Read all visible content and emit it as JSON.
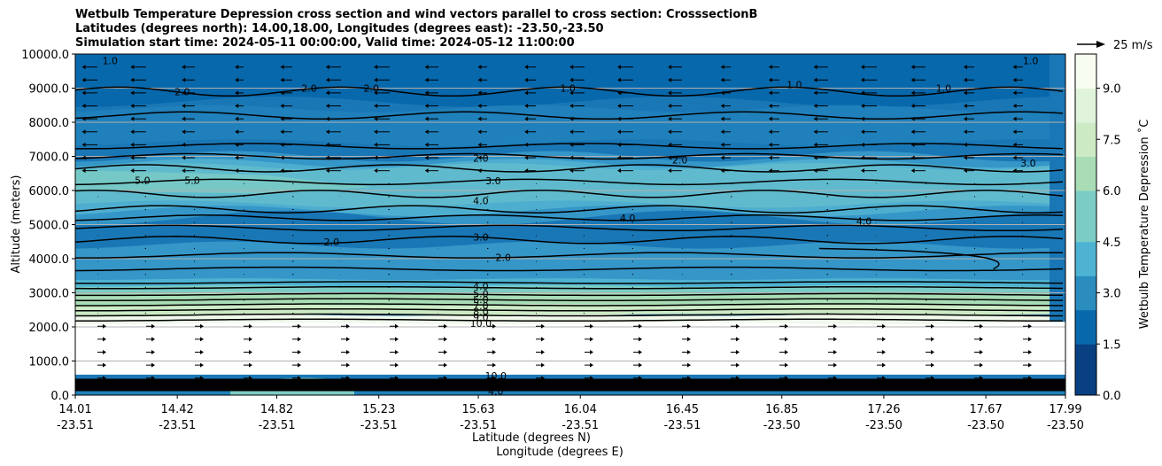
{
  "chart_data": {
    "type": "contourf cross-section with wind vectors",
    "title": {
      "line1": "Wetbulb Temperature Depression cross section and wind vectors parallel to cross section: CrosssectionB",
      "line2": "Latitudes (degrees north): 14.00,18.00, Longitudes (degrees east): -23.50,-23.50",
      "line3": "Simulation start time: 2024-05-11 00:00:00, Valid time: 2024-05-12 11:00:00"
    },
    "ylabel": "Altitude (meters)",
    "xlabel": "Latitude (degrees N)",
    "xlabel2": "Longitude (degrees E)",
    "ylim": [
      0,
      10000
    ],
    "yticks": [
      "10000.0",
      "9000.0",
      "8000.0",
      "7000.0",
      "6000.0",
      "5000.0",
      "4000.0",
      "3000.0",
      "2000.0",
      "1000.0",
      "0.0"
    ],
    "ytick_values": [
      10000,
      9000,
      8000,
      7000,
      6000,
      5000,
      4000,
      3000,
      2000,
      1000,
      0
    ],
    "xticks": [
      {
        "lat": "14.01",
        "lon": "-23.51"
      },
      {
        "lat": "14.42",
        "lon": "-23.51"
      },
      {
        "lat": "14.82",
        "lon": "-23.51"
      },
      {
        "lat": "15.23",
        "lon": "-23.51"
      },
      {
        "lat": "15.63",
        "lon": "-23.51"
      },
      {
        "lat": "16.04",
        "lon": "-23.51"
      },
      {
        "lat": "16.45",
        "lon": "-23.51"
      },
      {
        "lat": "16.85",
        "lon": "-23.50"
      },
      {
        "lat": "17.26",
        "lon": "-23.50"
      },
      {
        "lat": "17.67",
        "lon": "-23.50"
      },
      {
        "lat": "17.99",
        "lon": "-23.50"
      }
    ],
    "colorbar": {
      "label": "Wetbulb Temperature Depression ˚C",
      "range": [
        0,
        10
      ],
      "ticks": [
        "0.0",
        "1.5",
        "3.0",
        "4.5",
        "6.0",
        "7.5",
        "9.0"
      ],
      "tick_values": [
        0,
        1.5,
        3.0,
        4.5,
        6.0,
        7.5,
        9.0
      ],
      "colors": [
        "#084081",
        "#0868ac",
        "#2b8cbe",
        "#4eb3d3",
        "#7bccc4",
        "#a8ddb5",
        "#ccebc5",
        "#e0f3db",
        "#f7fcf0"
      ]
    },
    "wind_key": "25 m/s",
    "contour_labels": [
      {
        "text": "2.0",
        "lat": 15.64,
        "alt": 6950
      },
      {
        "text": "3.0",
        "lat": 15.69,
        "alt": 6280
      },
      {
        "text": "4.0",
        "lat": 15.64,
        "alt": 5700
      },
      {
        "text": "3.0",
        "lat": 15.64,
        "alt": 4630
      },
      {
        "text": "2.0",
        "lat": 15.73,
        "alt": 4040
      },
      {
        "text": "4.0",
        "lat": 15.64,
        "alt": 3200
      },
      {
        "text": "5.0",
        "lat": 15.64,
        "alt": 2980
      },
      {
        "text": "6.0",
        "lat": 15.64,
        "alt": 2800
      },
      {
        "text": "7.0",
        "lat": 15.64,
        "alt": 2620
      },
      {
        "text": "8.0",
        "lat": 15.64,
        "alt": 2450
      },
      {
        "text": "9.0",
        "lat": 15.64,
        "alt": 2280
      },
      {
        "text": "10.0",
        "lat": 15.64,
        "alt": 2100
      },
      {
        "text": "10.0",
        "lat": 15.7,
        "alt": 570
      },
      {
        "text": "8.0",
        "lat": 15.7,
        "alt": 400
      },
      {
        "text": "6.0",
        "lat": 15.7,
        "alt": 260
      },
      {
        "text": "4.0",
        "lat": 15.7,
        "alt": 120
      },
      {
        "text": "5.0",
        "lat": 14.28,
        "alt": 6300
      },
      {
        "text": "5.0",
        "lat": 14.48,
        "alt": 6300
      },
      {
        "text": "2.0",
        "lat": 14.44,
        "alt": 8900
      },
      {
        "text": "2.0",
        "lat": 14.95,
        "alt": 9000
      },
      {
        "text": "2.0",
        "lat": 15.2,
        "alt": 9000
      },
      {
        "text": "1.0",
        "lat": 15.99,
        "alt": 9000
      },
      {
        "text": "1.0",
        "lat": 16.9,
        "alt": 9100
      },
      {
        "text": "1.0",
        "lat": 17.5,
        "alt": 9000
      },
      {
        "text": "1.0",
        "lat": 17.85,
        "alt": 9800
      },
      {
        "text": "2.0",
        "lat": 16.44,
        "alt": 6900
      },
      {
        "text": "4.0",
        "lat": 16.23,
        "alt": 5200
      },
      {
        "text": "4.0",
        "lat": 17.18,
        "alt": 5100
      },
      {
        "text": "3.0",
        "lat": 17.84,
        "alt": 6800
      },
      {
        "text": "2.0",
        "lat": 15.04,
        "alt": 4500
      },
      {
        "text": "1.0",
        "lat": 14.15,
        "alt": 9800
      }
    ]
  }
}
